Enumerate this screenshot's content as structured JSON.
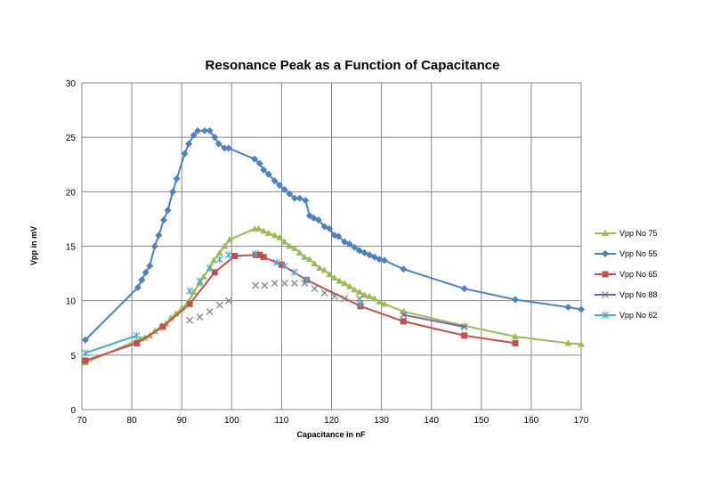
{
  "chart_data": {
    "type": "line",
    "title": "Resonance Peak as a Function of Capacitance",
    "xlabel": "Capacitance in nF",
    "ylabel": "Vpp in mV",
    "xlim": [
      70,
      170
    ],
    "ylim": [
      0,
      30
    ],
    "xticks": [
      70,
      80,
      90,
      100,
      110,
      120,
      130,
      140,
      150,
      160,
      170
    ],
    "yticks": [
      0,
      5,
      10,
      15,
      20,
      25,
      30
    ],
    "grid": true,
    "legend": "right",
    "series": [
      {
        "name": "Vpp No 75",
        "color": "#9BBB59",
        "marker": "triangle",
        "points": [
          [
            70.7,
            4.3
          ],
          [
            81.8,
            6.5
          ],
          [
            82.6,
            6.6
          ],
          [
            83.6,
            6.8
          ],
          [
            84.6,
            7.2
          ],
          [
            86,
            7.7
          ],
          [
            86.8,
            7.9
          ],
          [
            87.8,
            8.4
          ],
          [
            88.8,
            8.8
          ],
          [
            90,
            9.3
          ],
          [
            91.4,
            9.9
          ],
          [
            92.4,
            10.8
          ],
          [
            93.6,
            11.6
          ],
          [
            94.4,
            12.2
          ],
          [
            95.6,
            13
          ],
          [
            96.4,
            13.7
          ],
          [
            97.6,
            14.4
          ],
          [
            98.6,
            15
          ],
          [
            99.6,
            15.6
          ],
          [
            104.6,
            16.6
          ],
          [
            105.4,
            16.6
          ],
          [
            106.4,
            16.4
          ],
          [
            107.4,
            16.2
          ],
          [
            108.6,
            16
          ],
          [
            109.6,
            15.8
          ],
          [
            110.6,
            15.4
          ],
          [
            111.6,
            15
          ],
          [
            112.6,
            14.8
          ],
          [
            113.6,
            14.4
          ],
          [
            114.6,
            14
          ],
          [
            115.6,
            13.8
          ],
          [
            116.6,
            13.4
          ],
          [
            117.6,
            13
          ],
          [
            118.6,
            12.8
          ],
          [
            119.6,
            12.4
          ],
          [
            120.6,
            12.1
          ],
          [
            121.6,
            11.8
          ],
          [
            122.6,
            11.6
          ],
          [
            123.6,
            11.3
          ],
          [
            124.6,
            11
          ],
          [
            125.6,
            10.8
          ],
          [
            126.6,
            10.5
          ],
          [
            127.6,
            10.4
          ],
          [
            128.6,
            10.2
          ],
          [
            129.6,
            9.9
          ],
          [
            130.6,
            9.7
          ],
          [
            134.4,
            9
          ],
          [
            146.6,
            7.7
          ],
          [
            156.8,
            6.7
          ],
          [
            167.4,
            6.1
          ],
          [
            170,
            6
          ]
        ]
      },
      {
        "name": "Vpp No 55",
        "color": "#4F81BD",
        "marker": "diamond",
        "points": [
          [
            70.7,
            6.4
          ],
          [
            81.2,
            11.2
          ],
          [
            82,
            11.9
          ],
          [
            82.8,
            12.6
          ],
          [
            83.6,
            13.2
          ],
          [
            84.6,
            15
          ],
          [
            85.4,
            16
          ],
          [
            86.4,
            17.4
          ],
          [
            87.2,
            18.3
          ],
          [
            88.2,
            20
          ],
          [
            89,
            21.2
          ],
          [
            90.6,
            23.5
          ],
          [
            91.4,
            24.4
          ],
          [
            92.4,
            25.2
          ],
          [
            93.2,
            25.6
          ],
          [
            94.6,
            25.6
          ],
          [
            95.6,
            25.6
          ],
          [
            96.6,
            25
          ],
          [
            97.4,
            24.4
          ],
          [
            98.6,
            24
          ],
          [
            99.4,
            24
          ],
          [
            104.6,
            23
          ],
          [
            105.6,
            22.6
          ],
          [
            106.4,
            22
          ],
          [
            107.4,
            21.6
          ],
          [
            108.6,
            21
          ],
          [
            109.6,
            20.6
          ],
          [
            110.6,
            20.2
          ],
          [
            111.6,
            19.8
          ],
          [
            112.6,
            19.4
          ],
          [
            113.6,
            19.4
          ],
          [
            114.8,
            19.2
          ],
          [
            115.6,
            17.8
          ],
          [
            116.4,
            17.6
          ],
          [
            117.4,
            17.4
          ],
          [
            118.6,
            16.8
          ],
          [
            119.6,
            16.6
          ],
          [
            120.6,
            16
          ],
          [
            121.4,
            15.9
          ],
          [
            122.6,
            15.4
          ],
          [
            123.6,
            15.2
          ],
          [
            124.6,
            14.9
          ],
          [
            125.6,
            14.6
          ],
          [
            126.6,
            14.4
          ],
          [
            127.6,
            14.2
          ],
          [
            128.6,
            14
          ],
          [
            129.6,
            13.8
          ],
          [
            130.6,
            13.7
          ],
          [
            134.4,
            12.9
          ],
          [
            146.6,
            11.1
          ],
          [
            156.8,
            10.1
          ],
          [
            167.4,
            9.4
          ],
          [
            170,
            9.2
          ]
        ]
      },
      {
        "name": "Vpp No 65",
        "color": "#C0504D",
        "marker": "square",
        "points": [
          [
            70.7,
            4.5
          ],
          [
            81,
            6.1
          ],
          [
            86.2,
            7.6
          ],
          [
            91.6,
            9.7
          ],
          [
            96.6,
            12.6
          ],
          [
            100.6,
            14.1
          ],
          [
            104.8,
            14.2
          ],
          [
            105.6,
            14.2
          ],
          [
            106.4,
            14
          ],
          [
            110,
            13.3
          ],
          [
            115,
            11.9
          ],
          [
            125.8,
            9.5
          ],
          [
            134.4,
            8.1
          ],
          [
            146.6,
            6.8
          ],
          [
            156.8,
            6.1
          ]
        ]
      },
      {
        "name": "Vpp No 88",
        "color": "#8064A2",
        "marker": "x",
        "points": [
          [
            91.6,
            8.2
          ],
          [
            93.6,
            8.5
          ],
          [
            95.6,
            9
          ],
          [
            97.6,
            9.6
          ],
          [
            99.4,
            10
          ],
          [
            104.8,
            11.4
          ],
          [
            106.6,
            11.4
          ],
          [
            108.6,
            11.6
          ],
          [
            110.6,
            11.6
          ],
          [
            112.6,
            11.6
          ],
          [
            114.6,
            11.6
          ],
          [
            116.6,
            11.1
          ],
          [
            118.6,
            10.7
          ],
          [
            120.6,
            10.4
          ],
          [
            122.6,
            10.2
          ],
          [
            125.6,
            10.2
          ],
          [
            134.4,
            8.7
          ],
          [
            146.6,
            7.6
          ]
        ]
      },
      {
        "name": "Vpp No 62",
        "color": "#4BACC6",
        "marker": "star",
        "points": [
          [
            70.7,
            5.2
          ],
          [
            81,
            6.8
          ],
          [
            91.6,
            10.9
          ],
          [
            93.6,
            11.8
          ],
          [
            95.6,
            13
          ],
          [
            97.6,
            13.8
          ],
          [
            99.4,
            14.2
          ],
          [
            104.8,
            14.3
          ],
          [
            109,
            13.5
          ],
          [
            110.6,
            13.2
          ],
          [
            112.6,
            12.6
          ],
          [
            115,
            11.9
          ],
          [
            125.8,
            9.7
          ]
        ]
      }
    ]
  }
}
